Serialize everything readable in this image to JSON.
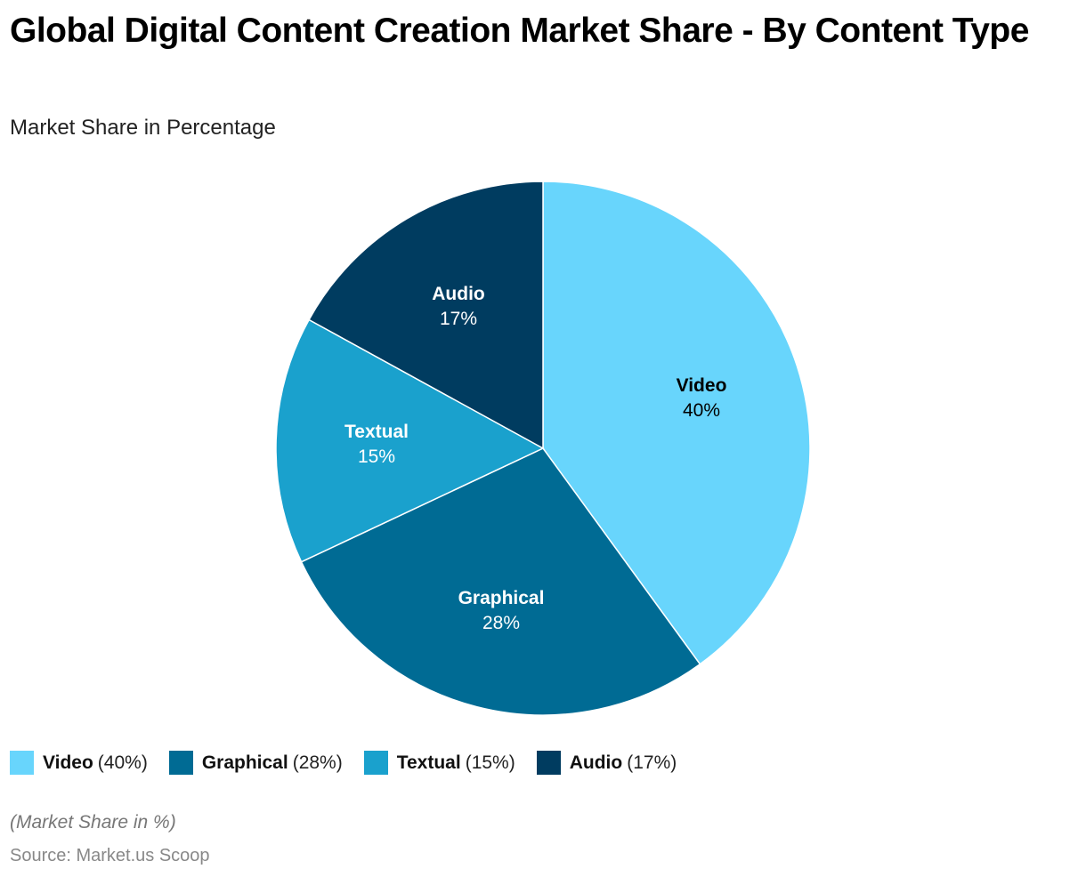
{
  "header": {
    "title": "Global Digital Content Creation Market Share - By Content Type",
    "subtitle": "Market Share in Percentage"
  },
  "legend": [
    {
      "name": "Video",
      "value_text": "(40%)",
      "color": "#68D5FC"
    },
    {
      "name": "Graphical",
      "value_text": "(28%)",
      "color": "#006B94"
    },
    {
      "name": "Textual",
      "value_text": "(15%)",
      "color": "#1AA1CD"
    },
    {
      "name": "Audio",
      "value_text": "(17%)",
      "color": "#003C60"
    }
  ],
  "slice_labels": [
    {
      "name": "Video",
      "pct": "40%"
    },
    {
      "name": "Graphical",
      "pct": "28%"
    },
    {
      "name": "Textual",
      "pct": "15%"
    },
    {
      "name": "Audio",
      "pct": "17%"
    }
  ],
  "footer": {
    "note": "(Market Share in %)",
    "source": "Source: Market.us Scoop"
  },
  "chart_data": {
    "type": "pie",
    "title": "Global Digital Content Creation Market Share - By Content Type",
    "subtitle": "Market Share in Percentage",
    "categories": [
      "Video",
      "Graphical",
      "Textual",
      "Audio"
    ],
    "values": [
      40,
      28,
      15,
      17
    ],
    "unit": "%",
    "colors": [
      "#68D5FC",
      "#006B94",
      "#1AA1CD",
      "#003C60"
    ],
    "start_angle": "12 o'clock, clockwise",
    "legend_position": "bottom",
    "annotations": [
      "(Market Share in %)",
      "Source: Market.us Scoop"
    ]
  }
}
